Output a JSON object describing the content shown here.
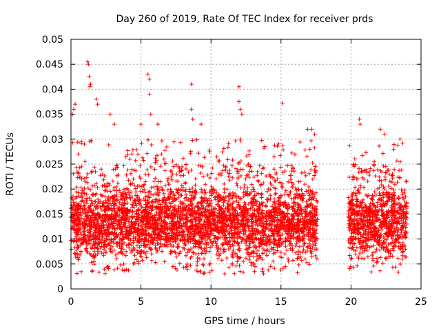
{
  "chart_data": {
    "type": "scatter",
    "title": "Day 260 of 2019, Rate Of TEC Index for receiver prds",
    "xlabel": "GPS time / hours",
    "ylabel": "ROTI / TECUs",
    "xlim": [
      0,
      25
    ],
    "ylim": [
      0,
      0.05
    ],
    "xticks": [
      0,
      5,
      10,
      15,
      20,
      25
    ],
    "xtick_labels": [
      "0",
      "5",
      "10",
      "15",
      "20",
      "25"
    ],
    "yticks": [
      0,
      0.005,
      0.01,
      0.015,
      0.02,
      0.025,
      0.03,
      0.035,
      0.04,
      0.045,
      0.05
    ],
    "ytick_labels": [
      "0",
      "0.005",
      "0.01",
      "0.015",
      "0.02",
      "0.025",
      "0.03",
      "0.035",
      "0.04",
      "0.045",
      "0.05"
    ],
    "grid": true,
    "marker": "+",
    "color": "#ff0000",
    "series": [
      {
        "name": "ROTI",
        "segments": [
          {
            "x_start": 0.0,
            "x_end": 17.6
          },
          {
            "x_start": 19.8,
            "x_end": 24.0
          }
        ],
        "typical_range": [
          0.004,
          0.02
        ],
        "points": [
          {
            "x": 0.1,
            "y": 0.035
          },
          {
            "x": 0.2,
            "y": 0.036
          },
          {
            "x": 0.3,
            "y": 0.037
          },
          {
            "x": 1.2,
            "y": 0.0455
          },
          {
            "x": 1.25,
            "y": 0.045
          },
          {
            "x": 1.3,
            "y": 0.0425
          },
          {
            "x": 1.35,
            "y": 0.0405
          },
          {
            "x": 1.4,
            "y": 0.041
          },
          {
            "x": 1.8,
            "y": 0.038
          },
          {
            "x": 1.9,
            "y": 0.037
          },
          {
            "x": 2.8,
            "y": 0.035
          },
          {
            "x": 3.1,
            "y": 0.033
          },
          {
            "x": 5.0,
            "y": 0.033
          },
          {
            "x": 5.5,
            "y": 0.043
          },
          {
            "x": 5.6,
            "y": 0.042
          },
          {
            "x": 5.6,
            "y": 0.039
          },
          {
            "x": 5.7,
            "y": 0.035
          },
          {
            "x": 6.2,
            "y": 0.033
          },
          {
            "x": 8.6,
            "y": 0.041
          },
          {
            "x": 8.6,
            "y": 0.036
          },
          {
            "x": 8.7,
            "y": 0.034
          },
          {
            "x": 9.3,
            "y": 0.033
          },
          {
            "x": 12.0,
            "y": 0.0405
          },
          {
            "x": 12.0,
            "y": 0.0375
          },
          {
            "x": 12.1,
            "y": 0.036
          },
          {
            "x": 12.2,
            "y": 0.035
          },
          {
            "x": 12.1,
            "y": 0.03
          },
          {
            "x": 15.1,
            "y": 0.0372
          },
          {
            "x": 16.9,
            "y": 0.032
          },
          {
            "x": 17.2,
            "y": 0.032
          },
          {
            "x": 17.4,
            "y": 0.031
          },
          {
            "x": 20.6,
            "y": 0.034
          },
          {
            "x": 20.65,
            "y": 0.033
          },
          {
            "x": 22.1,
            "y": 0.032
          },
          {
            "x": 22.4,
            "y": 0.031
          },
          {
            "x": 23.5,
            "y": 0.03
          }
        ]
      }
    ]
  }
}
